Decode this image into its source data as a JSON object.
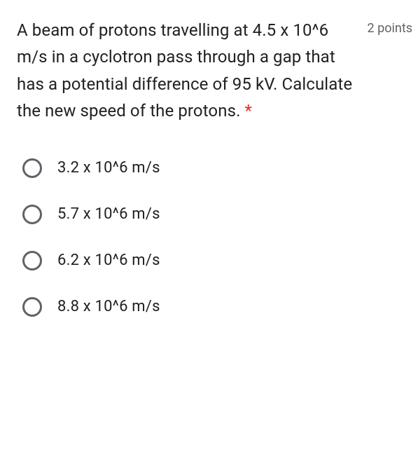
{
  "question": {
    "text": "A beam of protons travelling at 4.5 x 10^6 m/s in a cyclotron pass through a gap that has a potential difference of 95 kV. Calculate the new speed of the protons. ",
    "required_marker": "*",
    "points_label": "2 points"
  },
  "options": [
    {
      "label": "3.2 x 10^6 m/s"
    },
    {
      "label": "5.7 x 10^6 m/s"
    },
    {
      "label": "6.2 x 10^6 m/s"
    },
    {
      "label": "8.8 x 10^6 m/s"
    }
  ],
  "styling": {
    "text_color": "#202124",
    "secondary_text_color": "#5f6368",
    "required_color": "#d93025",
    "radio_border_color": "#5f6368",
    "background_color": "#ffffff",
    "question_fontsize": 24,
    "option_fontsize": 22,
    "points_fontsize": 18,
    "radio_size": 28,
    "radio_border_width": 3,
    "option_gap": 38
  }
}
